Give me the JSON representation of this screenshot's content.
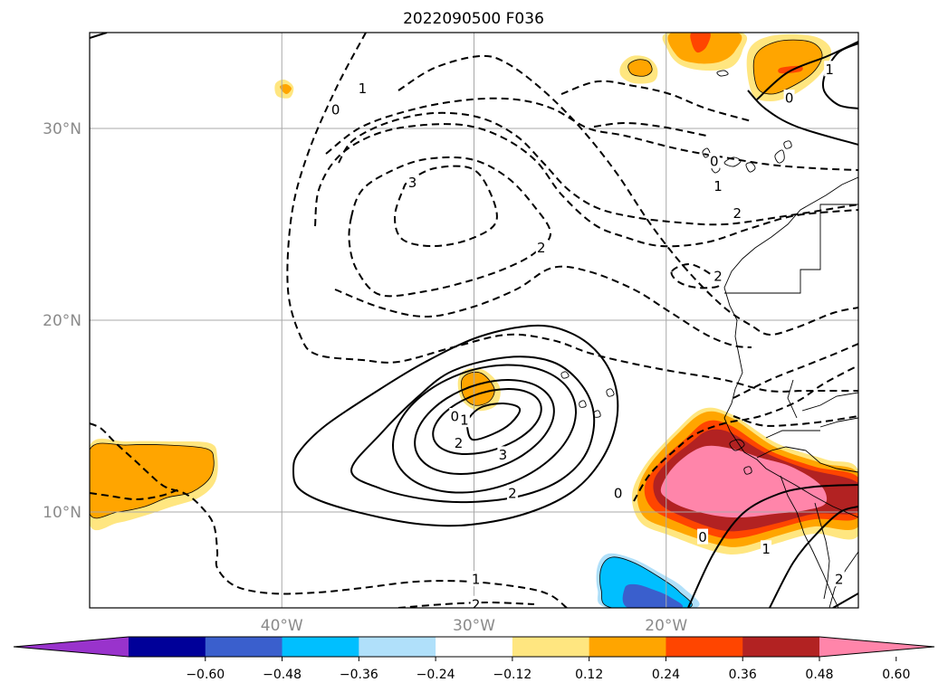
{
  "figure": {
    "title": "2022090500 F036"
  },
  "chart_data": {
    "type": "contour-map",
    "title": "2022090500 F036",
    "extent": {
      "lon": [
        -50,
        -10
      ],
      "lat": [
        5,
        35
      ]
    },
    "grid": true,
    "lat_ticks": [
      {
        "value": 30,
        "label": "30°N"
      },
      {
        "value": 20,
        "label": "20°N"
      },
      {
        "value": 10,
        "label": "10°N"
      }
    ],
    "lon_ticks": [
      {
        "value": -40,
        "label": "40°W"
      },
      {
        "value": -30,
        "label": "30°W"
      },
      {
        "value": -20,
        "label": "20°W"
      }
    ],
    "colorbar": {
      "colors": [
        "#9933cc",
        "#000099",
        "#3a5fcd",
        "#00bfff",
        "#b0e0fa",
        "#ffffff",
        "#ffe680",
        "#ffa500",
        "#ff4500",
        "#b22222",
        "#ff85aa"
      ],
      "ticks": [
        "−0.60",
        "−0.48",
        "−0.36",
        "−0.24",
        "−0.12",
        "0.12",
        "0.24",
        "0.36",
        "0.48",
        "0.60"
      ],
      "extend": "both"
    },
    "contour_labels": [
      {
        "text": "0",
        "lon": -31.0,
        "lat": 15.0
      },
      {
        "text": "1",
        "lon": -30.5,
        "lat": 14.8
      },
      {
        "text": "2",
        "lon": -30.8,
        "lat": 13.6
      },
      {
        "text": "3",
        "lon": -28.5,
        "lat": 13.0
      },
      {
        "text": "2",
        "lon": -28.0,
        "lat": 11.0
      },
      {
        "text": "0",
        "lon": -37.2,
        "lat": 31.0
      },
      {
        "text": "1",
        "lon": -35.8,
        "lat": 32.1
      },
      {
        "text": "3",
        "lon": -33.2,
        "lat": 27.2
      },
      {
        "text": "2",
        "lon": -26.5,
        "lat": 23.8
      },
      {
        "text": "0",
        "lon": -17.5,
        "lat": 28.3
      },
      {
        "text": "1",
        "lon": -17.3,
        "lat": 27.0
      },
      {
        "text": "2",
        "lon": -16.3,
        "lat": 25.6
      },
      {
        "text": "2",
        "lon": -17.3,
        "lat": 22.3
      },
      {
        "text": "0",
        "lon": -22.5,
        "lat": 11.0
      },
      {
        "text": "0",
        "lon": -18.1,
        "lat": 8.7
      },
      {
        "text": "1",
        "lon": -14.8,
        "lat": 8.1
      },
      {
        "text": "2",
        "lon": -11.0,
        "lat": 6.5
      },
      {
        "text": "1",
        "lon": -29.9,
        "lat": 6.5
      },
      {
        "text": "2",
        "lon": -29.9,
        "lat": 5.2
      },
      {
        "text": "0",
        "lon": -13.6,
        "lat": 31.6
      },
      {
        "text": "1",
        "lon": -11.5,
        "lat": 33.1
      }
    ]
  }
}
